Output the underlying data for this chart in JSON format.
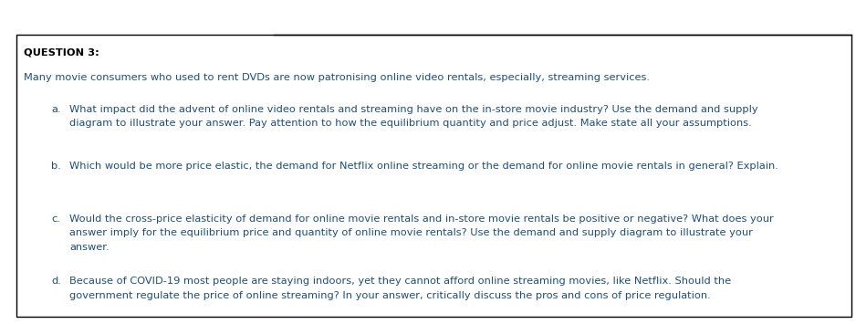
{
  "title": "QUESTION 3:",
  "intro_text": "Many movie consumers who used to rent DVDs are now patronising online video rentals, especially, streaming services.",
  "q_a_label": "a.",
  "q_a_line1": "What impact did the advent of online video rentals and streaming have on the in-store movie industry? Use the demand and supply",
  "q_a_line2": "diagram to illustrate your answer. Pay attention to how the equilibrium quantity and price adjust. Make state all your assumptions.",
  "q_b_label": "b.",
  "q_b_line1": "Which would be more price elastic, the demand for Netflix online streaming or the demand for online movie rentals in general? Explain.",
  "q_c_label": "c.",
  "q_c_line1": "Would the cross-price elasticity of demand for online movie rentals and in-store movie rentals be positive or negative? What does your",
  "q_c_line2": "answer imply for the equilibrium price and quantity of online movie rentals? Use the demand and supply diagram to illustrate your",
  "q_c_line3": "answer.",
  "q_d_label": "d.",
  "q_d_line1": "Because of COVID-19 most people are staying indoors, yet they cannot afford online streaming movies, like Netflix. Should the",
  "q_d_line2": "government regulate the price of online streaming? In your answer, critically discuss the pros and cons of price regulation.",
  "title_color": "#000000",
  "title_fontweight": "bold",
  "intro_color": "#1F4E79",
  "question_color": "#1F4E79",
  "background_color": "#ffffff",
  "border_color": "#000000",
  "fig_width": 9.38,
  "fig_height": 3.55,
  "dpi": 100
}
